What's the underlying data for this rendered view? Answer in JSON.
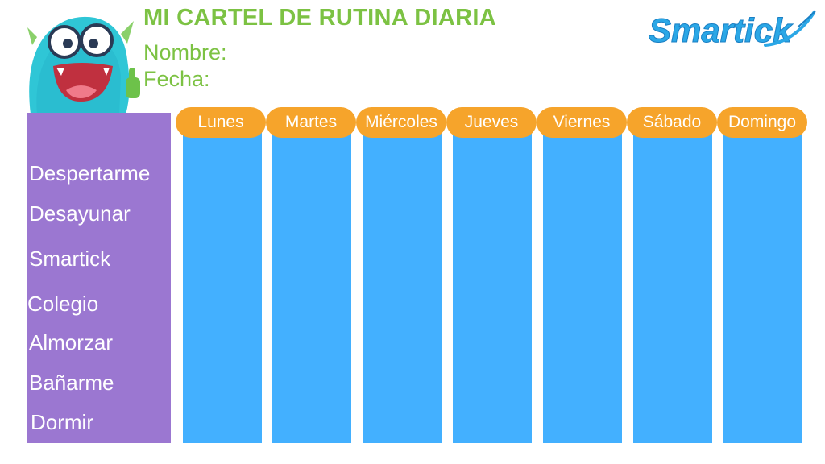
{
  "header": {
    "title": "MI CARTEL DE RUTINA DIARIA",
    "name_label": "Nombre:",
    "date_label": "Fecha:"
  },
  "logo": {
    "text": "Smartick",
    "icon": "smartick-logo"
  },
  "mascot": {
    "icon": "blue-monster-thumbs-up"
  },
  "days": [
    "Lunes",
    "Martes",
    "Miércoles",
    "Jueves",
    "Viernes",
    "Sábado",
    "Domingo"
  ],
  "activities": [
    "Despertarme",
    "Desayunar",
    "Smartick",
    "Colegio",
    "Almorzar",
    "Bañarme",
    "Dormir"
  ],
  "colors": {
    "title_green": "#7cc243",
    "panel_purple": "#9b77d1",
    "column_blue": "#43b0ff",
    "pill_orange": "#f6a42b",
    "logo_blue": "#2aa7e6"
  }
}
